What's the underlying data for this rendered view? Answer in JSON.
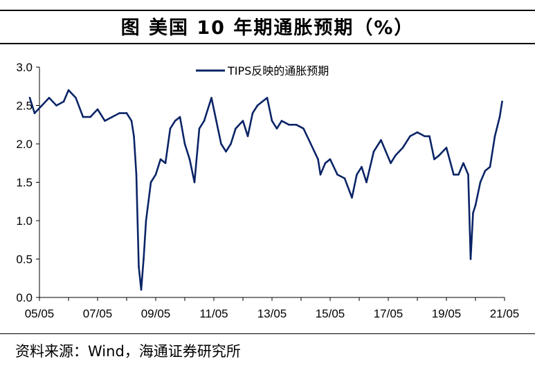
{
  "title": "图  美国 10 年期通胀预期（%）",
  "source": "资料来源：Wind，海通证券研究所",
  "chart_data": {
    "type": "line",
    "title": "图  美国 10 年期通胀预期（%）",
    "xlabel": "",
    "ylabel": "",
    "x_tick_labels": [
      "05/05",
      "07/05",
      "09/05",
      "11/05",
      "13/05",
      "15/05",
      "17/05",
      "19/05",
      "21/05"
    ],
    "y_tick_labels": [
      "0.0",
      "0.5",
      "1.0",
      "1.5",
      "2.0",
      "2.5",
      "3.0"
    ],
    "ylim": [
      0,
      3
    ],
    "xlim": [
      "2005-05",
      "2021-05"
    ],
    "grid": false,
    "legend_position": "top-center",
    "series_color": "#0a2466",
    "series": [
      {
        "name": "TIPS反映的通胀预期",
        "x": [
          "2005-01",
          "2005-03",
          "2005-06",
          "2005-09",
          "2005-12",
          "2006-03",
          "2006-05",
          "2006-08",
          "2006-11",
          "2007-02",
          "2007-05",
          "2007-08",
          "2007-11",
          "2008-02",
          "2008-05",
          "2008-07",
          "2008-08",
          "2008-09",
          "2008-10",
          "2008-11",
          "2008-12",
          "2009-01",
          "2009-03",
          "2009-05",
          "2009-07",
          "2009-09",
          "2009-11",
          "2010-01",
          "2010-03",
          "2010-05",
          "2010-07",
          "2010-09",
          "2010-11",
          "2011-01",
          "2011-04",
          "2011-06",
          "2011-08",
          "2011-10",
          "2011-12",
          "2012-02",
          "2012-05",
          "2012-07",
          "2012-09",
          "2012-11",
          "2013-01",
          "2013-03",
          "2013-05",
          "2013-07",
          "2013-09",
          "2013-12",
          "2014-03",
          "2014-06",
          "2014-09",
          "2014-12",
          "2015-01",
          "2015-03",
          "2015-05",
          "2015-08",
          "2015-11",
          "2016-02",
          "2016-04",
          "2016-06",
          "2016-08",
          "2016-11",
          "2017-02",
          "2017-04",
          "2017-06",
          "2017-08",
          "2017-11",
          "2018-02",
          "2018-05",
          "2018-08",
          "2018-10",
          "2018-12",
          "2019-02",
          "2019-05",
          "2019-08",
          "2019-10",
          "2019-12",
          "2020-02",
          "2020-03",
          "2020-04",
          "2020-05",
          "2020-07",
          "2020-09",
          "2020-11",
          "2021-01",
          "2021-03",
          "2021-04"
        ],
        "values": [
          2.6,
          2.4,
          2.5,
          2.6,
          2.5,
          2.55,
          2.7,
          2.6,
          2.35,
          2.35,
          2.45,
          2.3,
          2.35,
          2.4,
          2.4,
          2.3,
          2.1,
          1.6,
          0.4,
          0.1,
          0.5,
          1.0,
          1.5,
          1.6,
          1.8,
          1.75,
          2.2,
          2.3,
          2.35,
          2.0,
          1.8,
          1.5,
          2.2,
          2.3,
          2.6,
          2.3,
          2.0,
          1.9,
          2.0,
          2.2,
          2.3,
          2.1,
          2.4,
          2.5,
          2.55,
          2.6,
          2.3,
          2.2,
          2.3,
          2.25,
          2.25,
          2.2,
          2.0,
          1.8,
          1.6,
          1.75,
          1.8,
          1.6,
          1.55,
          1.3,
          1.6,
          1.7,
          1.5,
          1.9,
          2.05,
          1.9,
          1.75,
          1.85,
          1.95,
          2.1,
          2.15,
          2.1,
          2.1,
          1.8,
          1.85,
          1.95,
          1.6,
          1.6,
          1.75,
          1.6,
          0.5,
          1.1,
          1.2,
          1.5,
          1.65,
          1.7,
          2.1,
          2.35,
          2.55
        ]
      }
    ]
  }
}
